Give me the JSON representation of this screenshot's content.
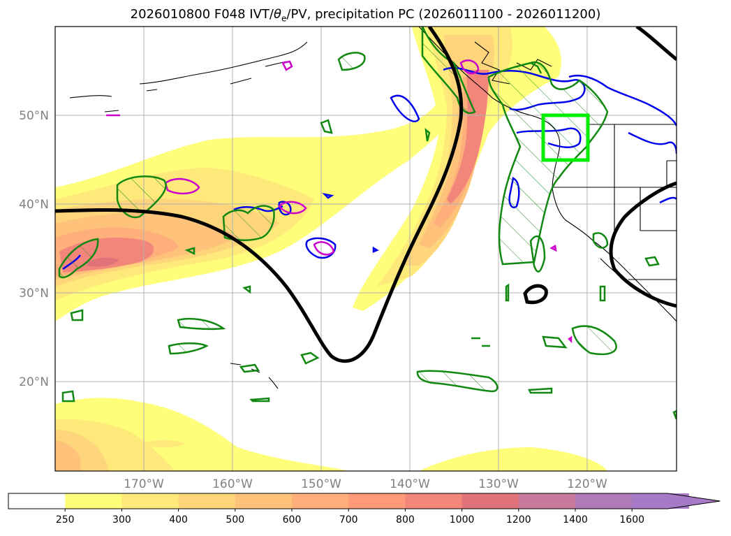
{
  "title": {
    "prefix": "2026010800 F048 IVT/",
    "theta": "θ",
    "theta_sub": "e",
    "suffix": "/PV, precipitation PC (2026011100 - 2026011200)"
  },
  "map": {
    "lat_labels": [
      "20°N",
      "30°N",
      "40°N",
      "50°N"
    ],
    "lon_labels": [
      "170°W",
      "160°W",
      "150°W",
      "140°W",
      "130°W",
      "120°W"
    ]
  },
  "colorbar": {
    "ticks": [
      "250",
      "300",
      "400",
      "500",
      "600",
      "700",
      "800",
      "1000",
      "1200",
      "1400",
      "1600"
    ],
    "colors": [
      "#ffffff",
      "#fefe7a",
      "#fee97a",
      "#fed57a",
      "#fec27a",
      "#feaf7a",
      "#fe9a7a",
      "#f3867a",
      "#e0737a",
      "#c77a9c",
      "#b07ab7",
      "#a67ac6"
    ]
  }
}
